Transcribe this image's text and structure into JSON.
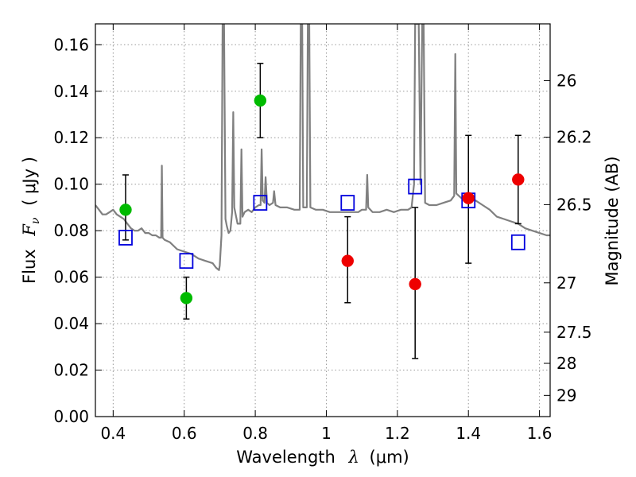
{
  "chart_data": {
    "type": "scatter",
    "xlabel_text": "Wavelength",
    "xlabel_symbol": "λ",
    "xlabel_unit": "(μm)",
    "ylabel_text": "Flux",
    "ylabel_symbol": "F",
    "ylabel_subscript": "ν",
    "ylabel_unit": "( μJy )",
    "y2label": "Magnitude (AB)",
    "xlim": [
      0.35,
      1.63
    ],
    "ylim": [
      0.0,
      0.169
    ],
    "x_ticks": [
      {
        "value": 0.4,
        "label": "0.4"
      },
      {
        "value": 0.6,
        "label": "0.6"
      },
      {
        "value": 0.8,
        "label": "0.8"
      },
      {
        "value": 1.0,
        "label": "1"
      },
      {
        "value": 1.2,
        "label": "1.2"
      },
      {
        "value": 1.4,
        "label": "1.4"
      },
      {
        "value": 1.6,
        "label": "1.6"
      }
    ],
    "y_ticks": [
      {
        "value": 0.0,
        "label": "0.00"
      },
      {
        "value": 0.02,
        "label": "0.02"
      },
      {
        "value": 0.04,
        "label": "0.04"
      },
      {
        "value": 0.06,
        "label": "0.06"
      },
      {
        "value": 0.08,
        "label": "0.08"
      },
      {
        "value": 0.1,
        "label": "0.10"
      },
      {
        "value": 0.12,
        "label": "0.12"
      },
      {
        "value": 0.14,
        "label": "0.14"
      },
      {
        "value": 0.16,
        "label": "0.16"
      }
    ],
    "mag_ticks": [
      {
        "mag": 26.0,
        "label": "26"
      },
      {
        "mag": 26.2,
        "label": "26.2"
      },
      {
        "mag": 26.5,
        "label": "26.5"
      },
      {
        "mag": 27.0,
        "label": "27"
      },
      {
        "mag": 27.5,
        "label": "27.5"
      },
      {
        "mag": 28.0,
        "label": "28"
      },
      {
        "mag": 29.0,
        "label": "29"
      }
    ],
    "grid": true,
    "colors": {
      "detection": "#00bb00",
      "upper": "#ee0000",
      "model_box": "#0000dd",
      "spectrum": "#808080",
      "errorbar": "#000000",
      "grid": "#999999"
    },
    "observed": [
      {
        "x": 0.435,
        "y": 0.089,
        "ylow": 0.076,
        "yhigh": 0.104,
        "group": "detection"
      },
      {
        "x": 0.606,
        "y": 0.051,
        "ylow": 0.042,
        "yhigh": 0.06,
        "group": "detection"
      },
      {
        "x": 0.814,
        "y": 0.136,
        "ylow": 0.12,
        "yhigh": 0.152,
        "group": "detection"
      },
      {
        "x": 1.06,
        "y": 0.067,
        "ylow": 0.049,
        "yhigh": 0.086,
        "group": "upper"
      },
      {
        "x": 1.25,
        "y": 0.057,
        "ylow": 0.025,
        "yhigh": 0.09,
        "group": "upper"
      },
      {
        "x": 1.4,
        "y": 0.094,
        "ylow": 0.066,
        "yhigh": 0.121,
        "group": "upper"
      },
      {
        "x": 1.54,
        "y": 0.102,
        "ylow": 0.083,
        "yhigh": 0.121,
        "group": "upper"
      }
    ],
    "model_photometry": [
      {
        "x": 0.435,
        "y": 0.077
      },
      {
        "x": 0.606,
        "y": 0.067
      },
      {
        "x": 0.814,
        "y": 0.092
      },
      {
        "x": 1.06,
        "y": 0.092
      },
      {
        "x": 1.25,
        "y": 0.099
      },
      {
        "x": 1.4,
        "y": 0.093
      },
      {
        "x": 1.54,
        "y": 0.075
      }
    ],
    "spectrum": [
      [
        0.35,
        0.091
      ],
      [
        0.36,
        0.089
      ],
      [
        0.37,
        0.087
      ],
      [
        0.38,
        0.087
      ],
      [
        0.39,
        0.088
      ],
      [
        0.4,
        0.089
      ],
      [
        0.41,
        0.087
      ],
      [
        0.42,
        0.086
      ],
      [
        0.43,
        0.085
      ],
      [
        0.44,
        0.083
      ],
      [
        0.45,
        0.081
      ],
      [
        0.46,
        0.08
      ],
      [
        0.47,
        0.08
      ],
      [
        0.48,
        0.081
      ],
      [
        0.49,
        0.079
      ],
      [
        0.5,
        0.079
      ],
      [
        0.51,
        0.078
      ],
      [
        0.52,
        0.078
      ],
      [
        0.53,
        0.077
      ],
      [
        0.535,
        0.077
      ],
      [
        0.537,
        0.108
      ],
      [
        0.539,
        0.077
      ],
      [
        0.545,
        0.076
      ],
      [
        0.56,
        0.075
      ],
      [
        0.58,
        0.072
      ],
      [
        0.6,
        0.071
      ],
      [
        0.62,
        0.07
      ],
      [
        0.64,
        0.068
      ],
      [
        0.66,
        0.067
      ],
      [
        0.68,
        0.066
      ],
      [
        0.69,
        0.064
      ],
      [
        0.698,
        0.063
      ],
      [
        0.7,
        0.065
      ],
      [
        0.705,
        0.078
      ],
      [
        0.708,
        0.169
      ],
      [
        0.712,
        0.169
      ],
      [
        0.716,
        0.085
      ],
      [
        0.72,
        0.082
      ],
      [
        0.725,
        0.079
      ],
      [
        0.73,
        0.08
      ],
      [
        0.735,
        0.088
      ],
      [
        0.738,
        0.131
      ],
      [
        0.741,
        0.09
      ],
      [
        0.746,
        0.086
      ],
      [
        0.75,
        0.083
      ],
      [
        0.758,
        0.083
      ],
      [
        0.761,
        0.115
      ],
      [
        0.764,
        0.086
      ],
      [
        0.77,
        0.088
      ],
      [
        0.78,
        0.089
      ],
      [
        0.79,
        0.088
      ],
      [
        0.8,
        0.09
      ],
      [
        0.81,
        0.091
      ],
      [
        0.815,
        0.091
      ],
      [
        0.818,
        0.115
      ],
      [
        0.821,
        0.093
      ],
      [
        0.826,
        0.092
      ],
      [
        0.829,
        0.103
      ],
      [
        0.833,
        0.092
      ],
      [
        0.84,
        0.091
      ],
      [
        0.85,
        0.092
      ],
      [
        0.853,
        0.097
      ],
      [
        0.857,
        0.091
      ],
      [
        0.87,
        0.09
      ],
      [
        0.89,
        0.09
      ],
      [
        0.91,
        0.089
      ],
      [
        0.925,
        0.089
      ],
      [
        0.928,
        0.169
      ],
      [
        0.932,
        0.169
      ],
      [
        0.935,
        0.09
      ],
      [
        0.945,
        0.09
      ],
      [
        0.948,
        0.169
      ],
      [
        0.952,
        0.169
      ],
      [
        0.955,
        0.09
      ],
      [
        0.97,
        0.089
      ],
      [
        0.99,
        0.089
      ],
      [
        1.01,
        0.088
      ],
      [
        1.03,
        0.088
      ],
      [
        1.05,
        0.088
      ],
      [
        1.07,
        0.088
      ],
      [
        1.09,
        0.088
      ],
      [
        1.1,
        0.089
      ],
      [
        1.112,
        0.089
      ],
      [
        1.115,
        0.104
      ],
      [
        1.118,
        0.09
      ],
      [
        1.13,
        0.088
      ],
      [
        1.15,
        0.088
      ],
      [
        1.17,
        0.089
      ],
      [
        1.19,
        0.088
      ],
      [
        1.21,
        0.089
      ],
      [
        1.23,
        0.089
      ],
      [
        1.24,
        0.09
      ],
      [
        1.247,
        0.1
      ],
      [
        1.25,
        0.169
      ],
      [
        1.255,
        0.169
      ],
      [
        1.26,
        0.169
      ],
      [
        1.265,
        0.1
      ],
      [
        1.27,
        0.169
      ],
      [
        1.274,
        0.169
      ],
      [
        1.278,
        0.092
      ],
      [
        1.29,
        0.091
      ],
      [
        1.31,
        0.091
      ],
      [
        1.33,
        0.092
      ],
      [
        1.35,
        0.093
      ],
      [
        1.36,
        0.095
      ],
      [
        1.363,
        0.156
      ],
      [
        1.366,
        0.096
      ],
      [
        1.38,
        0.094
      ],
      [
        1.4,
        0.094
      ],
      [
        1.42,
        0.093
      ],
      [
        1.44,
        0.091
      ],
      [
        1.46,
        0.089
      ],
      [
        1.48,
        0.086
      ],
      [
        1.5,
        0.085
      ],
      [
        1.52,
        0.084
      ],
      [
        1.54,
        0.083
      ],
      [
        1.56,
        0.081
      ],
      [
        1.58,
        0.08
      ],
      [
        1.6,
        0.079
      ],
      [
        1.62,
        0.078
      ],
      [
        1.63,
        0.078
      ]
    ]
  }
}
